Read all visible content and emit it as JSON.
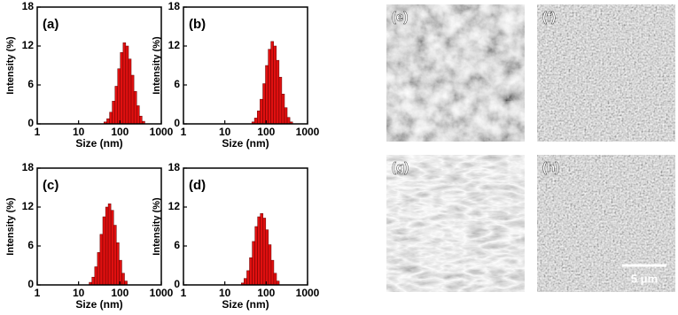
{
  "chart_data": [
    {
      "type": "histogram",
      "label": "(a)",
      "xlabel": "Size (nm)",
      "ylabel": "Intensity (%)",
      "log_x": true,
      "color": "#e01010",
      "xlim": [
        1,
        1000
      ],
      "xticks": [
        1,
        10,
        100,
        1000
      ],
      "ylim": [
        0,
        18
      ],
      "yticks": [
        0,
        6,
        12,
        18
      ],
      "bins": [
        41,
        48,
        56,
        65,
        76,
        88,
        102,
        119,
        138,
        161,
        187,
        218,
        254,
        295,
        343,
        400
      ],
      "values": [
        0.3,
        0.8,
        1.8,
        3.5,
        5.8,
        8.5,
        11,
        12.5,
        12,
        10,
        7.5,
        5,
        2.8,
        1.2,
        0.4
      ]
    },
    {
      "type": "histogram",
      "label": "(b)",
      "xlabel": "Size (nm)",
      "ylabel": "Intensity (%)",
      "log_x": true,
      "color": "#e01010",
      "xlim": [
        1,
        1000
      ],
      "xticks": [
        1,
        10,
        100,
        1000
      ],
      "ylim": [
        0,
        18
      ],
      "yticks": [
        0,
        6,
        12,
        18
      ],
      "bins": [
        45,
        52,
        61,
        71,
        83,
        96,
        112,
        130,
        151,
        176,
        205,
        238,
        277,
        322,
        375,
        436
      ],
      "values": [
        0.3,
        0.9,
        2,
        3.8,
        6.2,
        9,
        11.5,
        12.7,
        12,
        9.8,
        7.2,
        4.6,
        2.5,
        1,
        0.3
      ]
    },
    {
      "type": "histogram",
      "label": "(c)",
      "xlabel": "Size (nm)",
      "ylabel": "Intensity (%)",
      "log_x": true,
      "color": "#e01010",
      "xlim": [
        1,
        1000
      ],
      "xticks": [
        1,
        10,
        100,
        1000
      ],
      "ylim": [
        0,
        18
      ],
      "yticks": [
        0,
        6,
        12,
        18
      ],
      "bins": [
        18,
        21,
        24.5,
        28.5,
        33,
        38.5,
        45,
        52,
        60.5,
        70.5,
        82,
        95.5,
        111,
        129,
        150
      ],
      "values": [
        0.4,
        1.2,
        2.8,
        5,
        7.8,
        10.5,
        12,
        12.5,
        11.5,
        9.2,
        6.5,
        3.8,
        1.8,
        0.6
      ]
    },
    {
      "type": "histogram",
      "label": "(d)",
      "xlabel": "Size (nm)",
      "ylabel": "Intensity (%)",
      "log_x": true,
      "color": "#e01010",
      "xlim": [
        1,
        1000
      ],
      "xticks": [
        1,
        10,
        100,
        1000
      ],
      "ylim": [
        0,
        18
      ],
      "yticks": [
        0,
        6,
        12,
        18
      ],
      "bins": [
        25,
        29,
        34,
        39.5,
        46,
        53.5,
        62,
        72,
        84,
        97.5,
        113,
        132,
        153,
        178,
        207
      ],
      "values": [
        0.3,
        1,
        2.2,
        4.2,
        6.7,
        9,
        10.5,
        11,
        10.3,
        8.5,
        6.2,
        3.8,
        1.8,
        0.6
      ]
    }
  ],
  "images": [
    {
      "label": "(e)"
    },
    {
      "label": "(f)"
    },
    {
      "label": "(g)"
    },
    {
      "label": "(h)"
    }
  ],
  "scale_bar": "5 μm"
}
